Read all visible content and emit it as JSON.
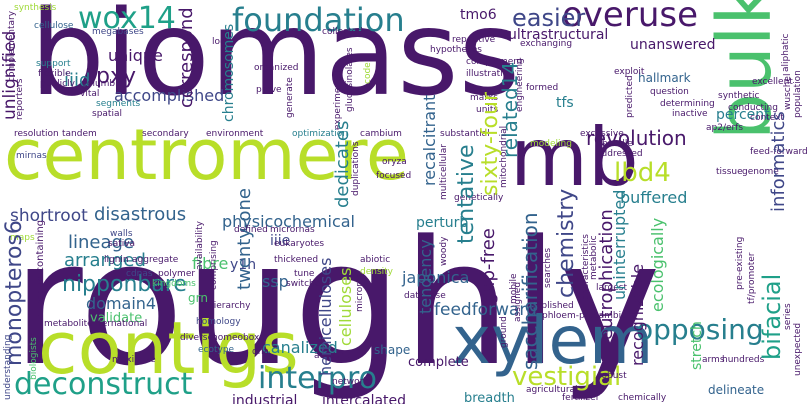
{
  "palette": {
    "dark_purple": "#48186a",
    "indigo": "#3f4788",
    "blue": "#33638d",
    "teal": "#277f8e",
    "green_teal": "#1fa088",
    "green": "#4ac16d",
    "yellow_green": "#b8de29",
    "light_green": "#a0da39"
  },
  "words": {
    "biomass": "biomass",
    "roughly": "roughly",
    "centromere": "centromere",
    "contigs": "contigs",
    "bulk": "bulk",
    "mb": "mb",
    "xylem": "xylem",
    "foundation": "foundation",
    "wox14": "wox14",
    "overuse": "overuse",
    "easier": "easier",
    "lbd4": "lbd4",
    "deconstruct": "deconstruct",
    "interpro": "interpro",
    "opposing": "opposing",
    "vestigial": "vestigial",
    "revolution": "revolution",
    "related14": "related14",
    "disastrous": "disastrous",
    "physicochemical": "physicochemical",
    "shortroot": "shortroot",
    "pxy": "pxy",
    "iiid": "iiid",
    "nipponbare": "nipponbare",
    "lineage": "lineage",
    "arranged": "arranged",
    "monopteros6": "monopteros6",
    "domain4": "domain4",
    "canalized": "canalized",
    "bifacial": "bifacial",
    "informatics": "informatics",
    "percent": "percent",
    "saccharification": "saccharification",
    "chemistry": "chemistry",
    "eutrophication": "eutrophication",
    "feedforward": "feedforward",
    "gap_free": "gap-free",
    "tentative": "tentative",
    "sixty_four": "sixty-four",
    "recalcitrant": "recalcitrant",
    "dedicates": "dedicates",
    "correspond": "correspond",
    "accomplished": "accomplished",
    "unique": "unique",
    "tmo6": "tmo6",
    "ultrastructural": "ultrastructural",
    "unanswered": "unanswered",
    "unlignified": "unlignified",
    "hemicelluloses": "hemicelluloses",
    "celluloses": "celluloses",
    "twenty_one": "twenty-one",
    "iiie": "iiie",
    "y1h": "y1h",
    "ssp": "ssp",
    "fibre": "fibre",
    "validate": "validate",
    "grn": "grn",
    "japonica": "japonica",
    "perturb": "perturb",
    "buffered": "buffered",
    "uninterrupted": "uninterrupted",
    "recognizable": "recognizable",
    "ecologically": "ecologically",
    "stretch": "stretch",
    "hallmark": "hallmark",
    "tfs": "tfs",
    "industrial": "industrial",
    "intercalated": "intercalated",
    "breadth": "breadth",
    "complete": "complete",
    "shape": "shape",
    "delineate": "delineate",
    "tendency": "tendency",
    "chromosomes": "chromosomes",
    "synthesis": "synthesis",
    "complementary": "complementary",
    "cellulose": "cellulose",
    "megabases": "megabases",
    "support": "support",
    "flexible": "flexible",
    "publicly": "publicly",
    "reporters": "reporters",
    "columbia": "columbia",
    "vital": "vital",
    "segments": "segments",
    "spatial": "spatial",
    "resolution": "resolution",
    "tandem": "tandem",
    "secondary": "secondary",
    "environment": "environment",
    "optimization": "optimization",
    "cambium": "cambium",
    "mirnas": "mirnas",
    "maps": "maps",
    "walls": "walls",
    "sativa": "sativa",
    "lignin": "lignin",
    "aggregate": "aggregate",
    "cdnas": "cdnas",
    "polymer": "polymer",
    "kingdoms": "kingdoms",
    "metabolite": "metabolite",
    "international": "international",
    "understanding": "understanding",
    "biologists": "biologists",
    "nitrogen_containing": "nitrogen-containing",
    "hierarchy": "hierarchy",
    "homology": "homology",
    "homeobox": "homeobox",
    "ecotype": "ecotype",
    "diverse": "diverse",
    "maximize": "maximize",
    "dna": "dna",
    "account": "account",
    "network": "network",
    "microrna": "microrna",
    "tune": "tune",
    "switches": "switches",
    "thickened": "thickened",
    "eukaryotes": "eukaryotes",
    "defined": "defined",
    "micrornas": "micrornas",
    "comprising": "comprising",
    "availability": "availability",
    "loops": "loops",
    "organized": "organized",
    "prove": "prove",
    "generate": "generate",
    "collected": "collected",
    "experimentally": "experimentally",
    "glucosinolates": "glucosinolates",
    "code": "code",
    "duplications": "duplications",
    "oryza": "oryza",
    "focused": "focused",
    "multicellular": "multicellular",
    "genetically": "genetically",
    "abiotic": "abiotic",
    "density": "density",
    "woody": "woody",
    "database": "database",
    "ground": "ground",
    "assigned": "assigned",
    "published": "published",
    "searches": "searches",
    "mobile": "mobile",
    "agricultural": "agricultural",
    "fertilizer": "fertilizer",
    "chemically": "chemically",
    "robust": "robust",
    "phloem_procambium": "phloem-procambium",
    "metabolic": "metabolic",
    "characteristics": "characteristics",
    "largest": "largest",
    "complement": "complement",
    "illustrative": "illustrative",
    "hypotheses": "hypotheses",
    "repetitive": "repetitive",
    "exchanging": "exchanging",
    "mitochondrial": "mitochondrial",
    "engineering": "engineering",
    "formed": "formed",
    "marks": "marks",
    "units": "units",
    "substantial": "substantial",
    "excessive": "excessive",
    "bundle": "bundle",
    "addressed": "addressed",
    "modeling": "modeling",
    "exploit": "exploit",
    "predicted": "predicted",
    "question": "question",
    "determining": "determining",
    "inactive": "inactive",
    "excellent": "excellent",
    "synthetic": "synthetic",
    "conducting": "conducting",
    "ap2_erfs": "ap2/erfs",
    "context": "context",
    "feed_forward": "feed-forward",
    "tissue": "tissue",
    "aliphatic": "aliphatic",
    "wuschel": "wuschel",
    "population": "population",
    "genome": "genome",
    "pre_existing": "pre-existing",
    "tf_promoter": "tf/promoter",
    "arms": "arms",
    "hundreds": "hundreds",
    "series": "series",
    "unexpected": "unexpected"
  }
}
